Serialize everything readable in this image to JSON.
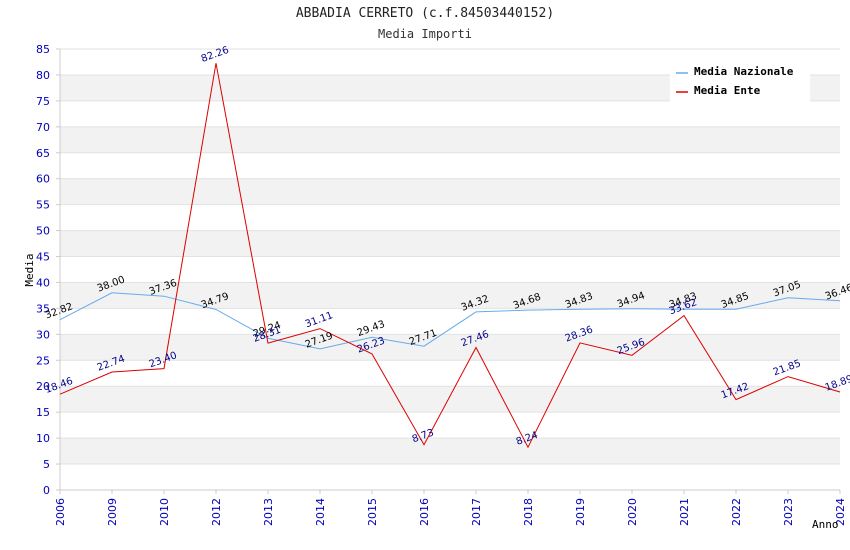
{
  "chart_data": {
    "type": "line",
    "title": "ABBADIA CERRETO (c.f.84503440152)",
    "subtitle": "Media Importi",
    "xlabel": "Anno",
    "ylabel": "Media",
    "categories": [
      "2006",
      "2009",
      "2010",
      "2012",
      "2013",
      "2014",
      "2015",
      "2016",
      "2017",
      "2018",
      "2019",
      "2020",
      "2021",
      "2022",
      "2023",
      "2024"
    ],
    "ylim": [
      0,
      85
    ],
    "yticks": [
      0,
      5,
      10,
      15,
      20,
      25,
      30,
      35,
      40,
      45,
      50,
      55,
      60,
      65,
      70,
      75,
      80,
      85
    ],
    "series": [
      {
        "name": "Media Nazionale",
        "color": "#66aaee",
        "label_color": "#000000",
        "values": [
          32.82,
          38.0,
          37.36,
          34.79,
          29.24,
          27.19,
          29.43,
          27.71,
          34.32,
          34.68,
          34.83,
          34.94,
          34.83,
          34.85,
          37.05,
          36.46
        ],
        "labels": [
          "32.82",
          "38.00",
          "37.36",
          "34.79",
          "29.24",
          "27.19",
          "29.43",
          "27.71",
          "34.32",
          "34.68",
          "34.83",
          "34.94",
          "34.83",
          "34.85",
          "37.05",
          "36.46"
        ]
      },
      {
        "name": "Media Ente",
        "color": "#dd0000",
        "label_color": "#000088",
        "values": [
          18.46,
          22.74,
          23.4,
          82.26,
          28.31,
          31.11,
          26.23,
          8.73,
          27.46,
          8.24,
          28.36,
          25.96,
          33.62,
          17.42,
          21.85,
          18.89
        ],
        "labels": [
          "18.46",
          "22.74",
          "23.40",
          "82.26",
          "28.31",
          "31.11",
          "26.23",
          "8.73",
          "27.46",
          "8.24",
          "28.36",
          "25.96",
          "33.62",
          "17.42",
          "21.85",
          "18.89"
        ]
      }
    ],
    "grid": true,
    "legend_position": "top-right",
    "colors": {
      "tick_label": "#0000bb",
      "band": "#f2f2f2",
      "axis": "#cccccc"
    }
  }
}
